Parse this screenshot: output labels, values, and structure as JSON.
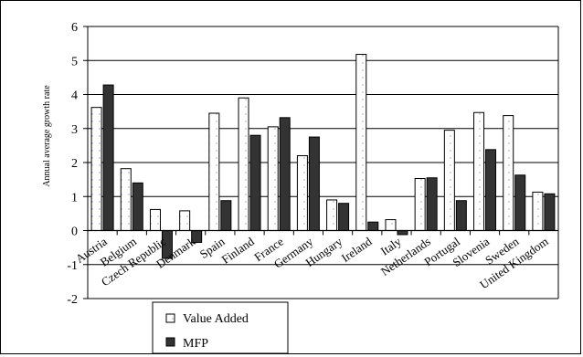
{
  "chart_data": {
    "type": "bar",
    "title": "",
    "xlabel": "",
    "ylabel": "Annual average growth rate",
    "ylim": [
      -2,
      6
    ],
    "yticks": [
      -2,
      -1,
      0,
      1,
      2,
      3,
      4,
      5,
      6
    ],
    "grid": true,
    "legend_position": "bottom-left",
    "categories": [
      "Austria",
      "Belgium",
      "Czech Republic",
      "Denmark",
      "Spain",
      "Finland",
      "France",
      "Germany",
      "Hungary",
      "Ireland",
      "Italy",
      "Netherlands",
      "Portugal",
      "Slovenia",
      "Sweden",
      "United Kingdom"
    ],
    "series": [
      {
        "name": "Value Added",
        "color": "#ffffff",
        "pattern": "dotted",
        "values": [
          3.62,
          1.82,
          0.62,
          0.58,
          3.45,
          3.9,
          3.05,
          2.2,
          0.9,
          5.18,
          0.32,
          1.53,
          2.95,
          3.47,
          3.38,
          1.13
        ]
      },
      {
        "name": "MFP",
        "color": "#333333",
        "values": [
          4.28,
          1.4,
          -0.82,
          -0.35,
          0.88,
          2.8,
          3.32,
          2.75,
          0.8,
          0.25,
          -0.12,
          1.55,
          0.88,
          2.38,
          1.63,
          1.08
        ]
      }
    ]
  }
}
